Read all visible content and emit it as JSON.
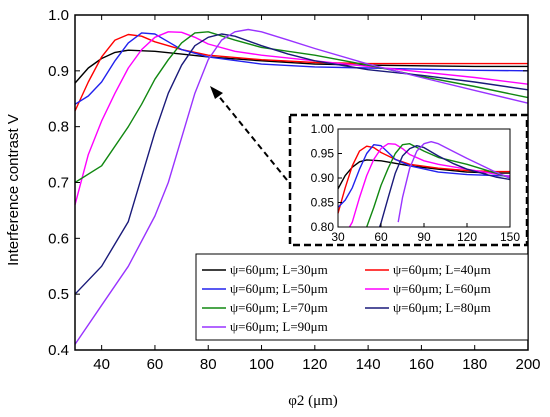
{
  "chart_data": {
    "type": "line",
    "xlabel": "φ2 (μm)",
    "ylabel": "Interference contrast V",
    "xlim": [
      30,
      200
    ],
    "ylim": [
      0.4,
      1.0
    ],
    "x_ticks": [
      "40",
      "60",
      "80",
      "100",
      "120",
      "140",
      "160",
      "180",
      "200"
    ],
    "y_ticks": [
      "0.4",
      "0.5",
      "0.6",
      "0.7",
      "0.8",
      "0.9",
      "1.0"
    ],
    "legend_position": "bottom-right",
    "series": [
      {
        "name": "ψ=60μm; L=30μm",
        "color": "#000000",
        "x": [
          30,
          35,
          40,
          45,
          50,
          60,
          70,
          80,
          100,
          120,
          140,
          160,
          180,
          200
        ],
        "y": [
          0.878,
          0.905,
          0.922,
          0.933,
          0.937,
          0.935,
          0.93,
          0.925,
          0.918,
          0.912,
          0.91,
          0.909,
          0.908,
          0.908
        ]
      },
      {
        "name": "ψ=60μm; L=40μm",
        "color": "#ff0000",
        "x": [
          30,
          35,
          40,
          45,
          50,
          55,
          60,
          70,
          80,
          100,
          120,
          140,
          160,
          180,
          200
        ],
        "y": [
          0.828,
          0.88,
          0.925,
          0.955,
          0.965,
          0.962,
          0.952,
          0.938,
          0.928,
          0.92,
          0.915,
          0.913,
          0.913,
          0.913,
          0.913
        ]
      },
      {
        "name": "ψ=60μm; L=50μm",
        "color": "#2222ee",
        "x": [
          30,
          35,
          40,
          45,
          50,
          55,
          60,
          65,
          70,
          80,
          100,
          120,
          140,
          160,
          180,
          200
        ],
        "y": [
          0.84,
          0.855,
          0.88,
          0.918,
          0.95,
          0.968,
          0.966,
          0.952,
          0.938,
          0.925,
          0.912,
          0.907,
          0.905,
          0.903,
          0.901,
          0.9
        ]
      },
      {
        "name": "ψ=60μm; L=60μm",
        "color": "#ff00ff",
        "x": [
          30,
          35,
          40,
          45,
          50,
          55,
          60,
          65,
          70,
          75,
          80,
          90,
          100,
          120,
          140,
          160,
          180,
          200
        ],
        "y": [
          0.66,
          0.75,
          0.81,
          0.86,
          0.905,
          0.938,
          0.96,
          0.97,
          0.969,
          0.96,
          0.948,
          0.935,
          0.928,
          0.918,
          0.908,
          0.898,
          0.888,
          0.876
        ]
      },
      {
        "name": "ψ=60μm; L=70μm",
        "color": "#118811",
        "x": [
          30,
          40,
          50,
          55,
          60,
          65,
          70,
          75,
          80,
          90,
          100,
          120,
          140,
          160,
          180,
          200
        ],
        "y": [
          0.7,
          0.73,
          0.8,
          0.84,
          0.885,
          0.92,
          0.95,
          0.968,
          0.97,
          0.955,
          0.942,
          0.928,
          0.91,
          0.89,
          0.872,
          0.852
        ]
      },
      {
        "name": "ψ=60μm; L=80μm",
        "color": "#1a1a7a",
        "x": [
          30,
          40,
          50,
          55,
          60,
          65,
          70,
          75,
          80,
          85,
          90,
          100,
          110,
          120,
          140,
          160,
          180,
          200
        ],
        "y": [
          0.5,
          0.55,
          0.63,
          0.71,
          0.79,
          0.86,
          0.91,
          0.945,
          0.96,
          0.966,
          0.962,
          0.945,
          0.93,
          0.918,
          0.902,
          0.892,
          0.88,
          0.866
        ]
      },
      {
        "name": "ψ=60μm; L=90μm",
        "color": "#9933ff",
        "x": [
          30,
          40,
          50,
          60,
          65,
          70,
          75,
          80,
          85,
          90,
          95,
          100,
          110,
          120,
          140,
          160,
          180,
          200
        ],
        "y": [
          0.41,
          0.48,
          0.55,
          0.64,
          0.7,
          0.78,
          0.86,
          0.92,
          0.955,
          0.97,
          0.974,
          0.97,
          0.955,
          0.94,
          0.912,
          0.888,
          0.865,
          0.842
        ]
      }
    ],
    "inset": {
      "xlim": [
        30,
        150
      ],
      "ylim": [
        0.8,
        1.0
      ],
      "x_ticks": [
        "30",
        "60",
        "90",
        "120",
        "150"
      ],
      "y_ticks": [
        "0.80",
        "0.85",
        "0.90",
        "0.95",
        "1.00"
      ],
      "series": [
        {
          "color": "#000000",
          "x": [
            30,
            35,
            40,
            45,
            50,
            60,
            70,
            80,
            100,
            120,
            140,
            150
          ],
          "y": [
            0.878,
            0.905,
            0.922,
            0.933,
            0.937,
            0.935,
            0.93,
            0.925,
            0.918,
            0.912,
            0.91,
            0.91
          ]
        },
        {
          "color": "#ff0000",
          "x": [
            30,
            35,
            40,
            45,
            50,
            55,
            60,
            70,
            80,
            100,
            120,
            140,
            150
          ],
          "y": [
            0.828,
            0.88,
            0.925,
            0.955,
            0.965,
            0.962,
            0.952,
            0.938,
            0.928,
            0.92,
            0.915,
            0.913,
            0.913
          ]
        },
        {
          "color": "#2222ee",
          "x": [
            30,
            35,
            40,
            45,
            50,
            55,
            60,
            65,
            70,
            80,
            100,
            120,
            140,
            150
          ],
          "y": [
            0.84,
            0.855,
            0.88,
            0.918,
            0.95,
            0.968,
            0.966,
            0.952,
            0.938,
            0.925,
            0.912,
            0.907,
            0.905,
            0.904
          ]
        },
        {
          "color": "#ff00ff",
          "x": [
            38,
            40,
            45,
            50,
            55,
            60,
            65,
            70,
            75,
            80,
            90,
            100,
            120,
            140,
            150
          ],
          "y": [
            0.8,
            0.81,
            0.86,
            0.905,
            0.938,
            0.96,
            0.97,
            0.969,
            0.96,
            0.948,
            0.935,
            0.928,
            0.918,
            0.908,
            0.903
          ]
        },
        {
          "color": "#118811",
          "x": [
            50,
            55,
            60,
            65,
            70,
            75,
            80,
            90,
            100,
            120,
            140,
            150
          ],
          "y": [
            0.8,
            0.84,
            0.885,
            0.92,
            0.95,
            0.968,
            0.97,
            0.955,
            0.942,
            0.928,
            0.91,
            0.9
          ]
        },
        {
          "color": "#1a1a7a",
          "x": [
            59,
            60,
            65,
            70,
            75,
            80,
            85,
            90,
            100,
            110,
            120,
            140,
            150
          ],
          "y": [
            0.8,
            0.808,
            0.86,
            0.91,
            0.945,
            0.96,
            0.966,
            0.962,
            0.945,
            0.93,
            0.918,
            0.902,
            0.897
          ]
        },
        {
          "color": "#9933ff",
          "x": [
            72,
            75,
            80,
            85,
            90,
            95,
            100,
            110,
            120,
            140,
            150
          ],
          "y": [
            0.81,
            0.86,
            0.92,
            0.955,
            0.97,
            0.974,
            0.97,
            0.955,
            0.94,
            0.912,
            0.9
          ]
        }
      ]
    }
  }
}
